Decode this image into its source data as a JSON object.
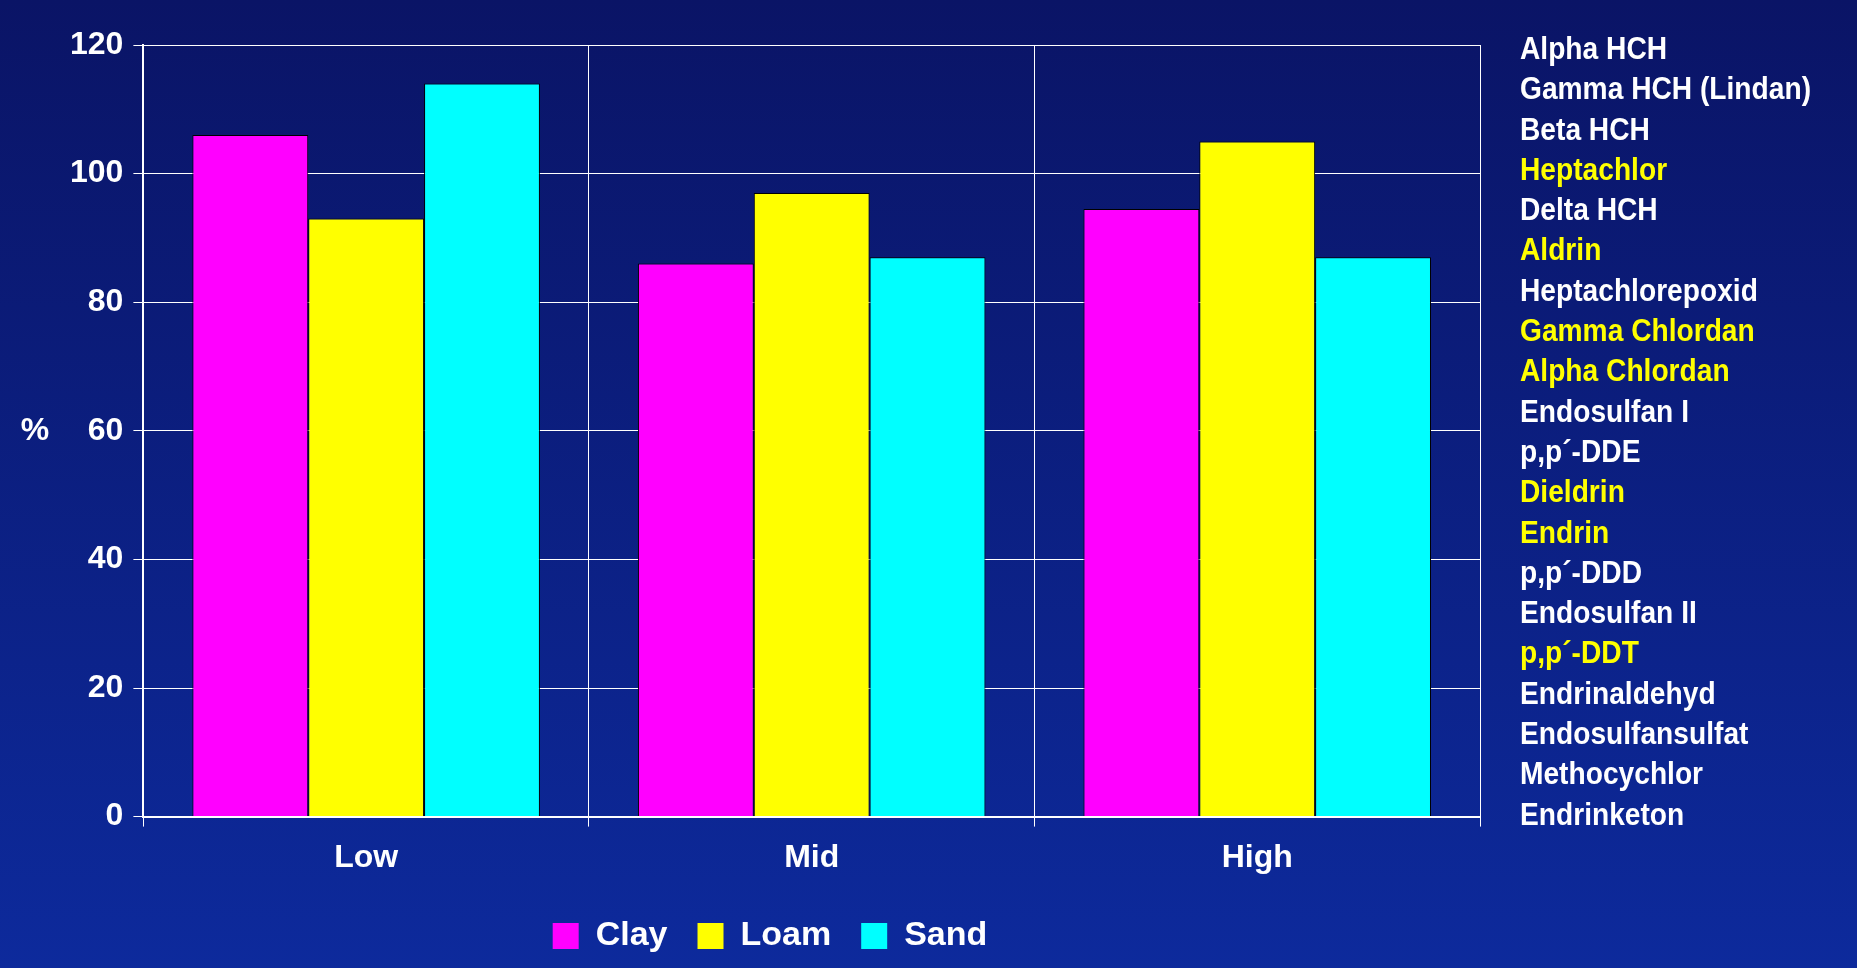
{
  "chart_data": {
    "type": "bar",
    "ylabel": "%",
    "categories": [
      "Low",
      "Mid",
      "High"
    ],
    "series": [
      {
        "name": "Clay",
        "color": "#ff00ff",
        "values": [
          106,
          86,
          94.5
        ]
      },
      {
        "name": "Loam",
        "color": "#ffff00",
        "values": [
          93,
          97,
          105
        ]
      },
      {
        "name": "Sand",
        "color": "#00ffff",
        "values": [
          114,
          87,
          87
        ]
      }
    ],
    "ylim": [
      0,
      120
    ],
    "yticks": [
      0,
      20,
      40,
      60,
      80,
      100,
      120
    ],
    "grid": true,
    "legend": "bottom",
    "annotations": [
      "Alpha HCH",
      "Gamma HCH (Lindan)",
      "Beta HCH",
      "Heptachlor",
      "Delta HCH",
      "Aldrin",
      "Heptachlorepoxid",
      "Gamma Chlordan",
      "Alpha Chlordan",
      "Endosulfan I",
      "p,p´-DDE",
      "Dieldrin",
      "Endrin",
      "p,p´-DDD",
      "Endosulfan II",
      "p,p´-DDT",
      "Endrinaldehyd",
      "Endosulfansulfat",
      "Methocychlor",
      "Endrinketon"
    ]
  }
}
